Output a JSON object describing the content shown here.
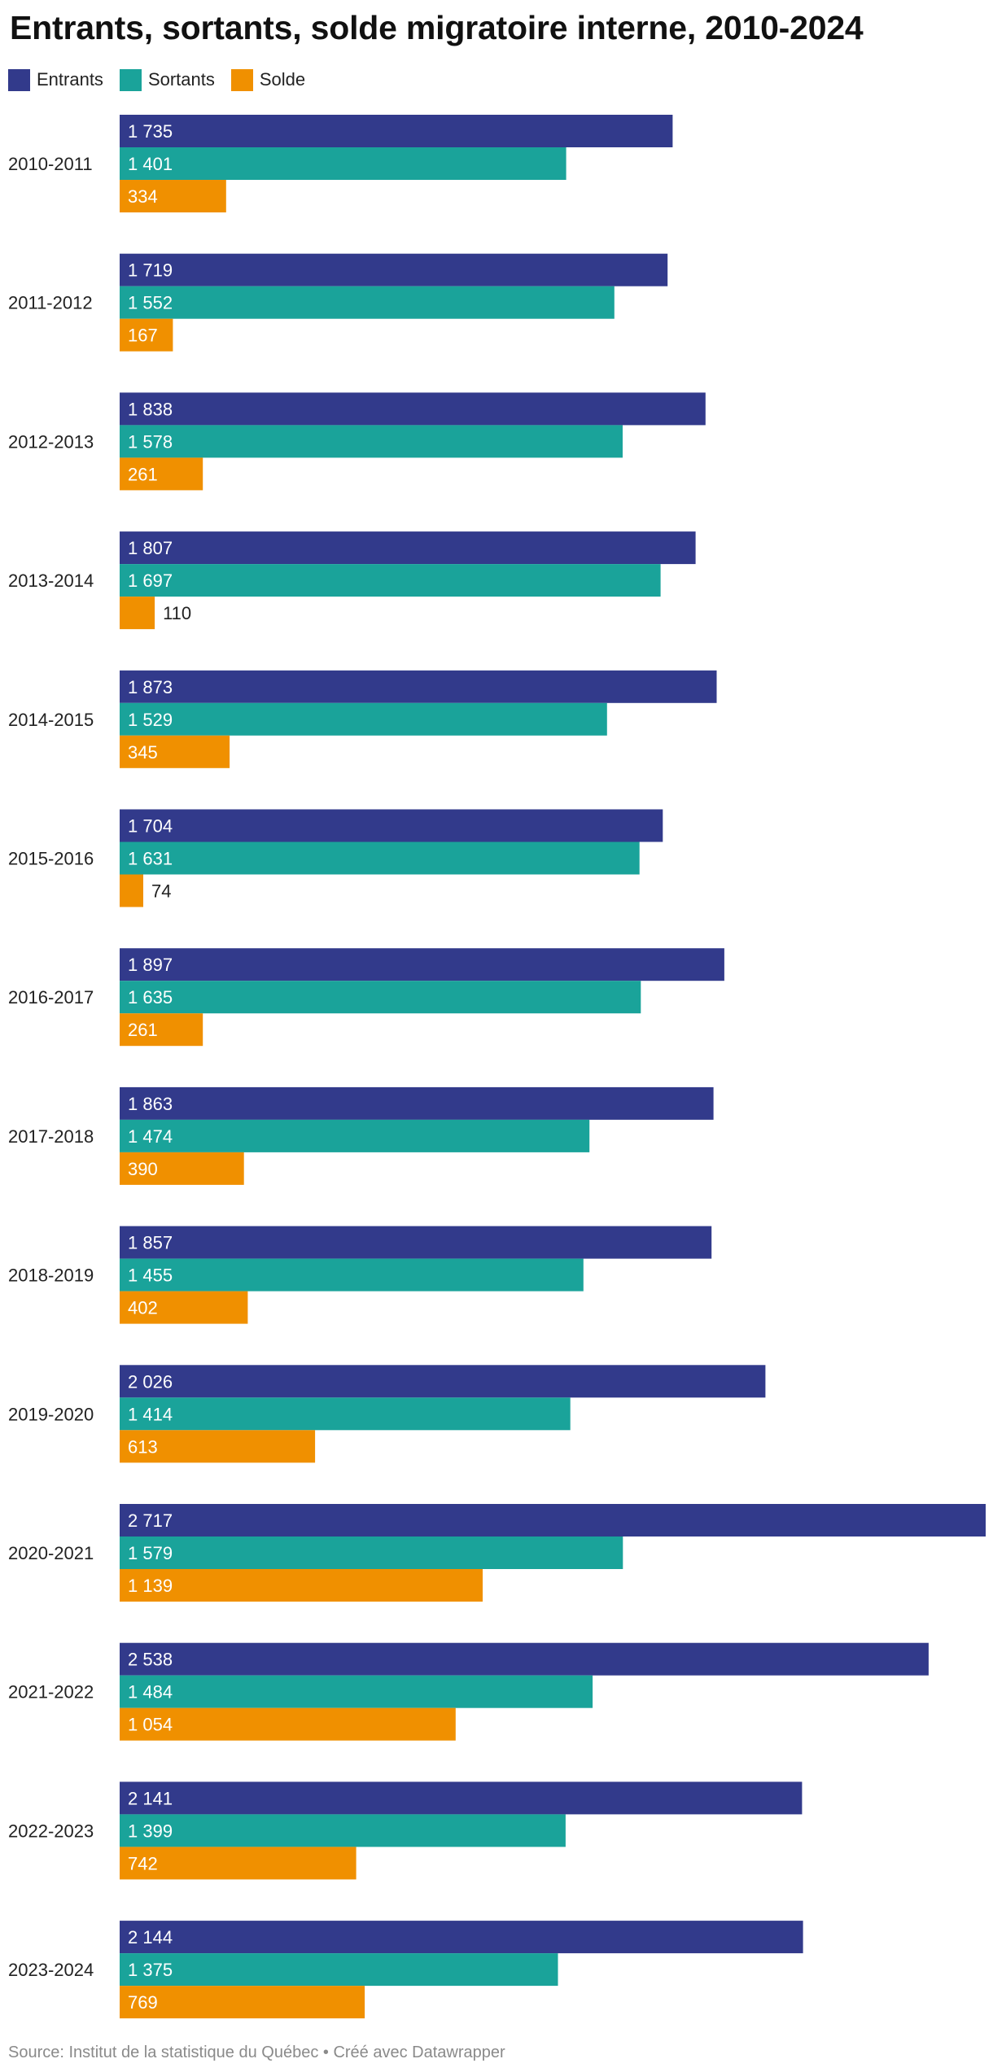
{
  "title": "Entrants, sortants, solde migratoire interne, 2010-2024",
  "legend": [
    {
      "label": "Entrants",
      "color": "#323a8b"
    },
    {
      "label": "Sortants",
      "color": "#1aa39a"
    },
    {
      "label": "Solde",
      "color": "#f09000"
    }
  ],
  "source": "Source: Institut de la statistique du Québec • Créé avec Datawrapper",
  "chart_data": {
    "type": "bar",
    "orientation": "horizontal",
    "categories": [
      "2010-2011",
      "2011-2012",
      "2012-2013",
      "2013-2014",
      "2014-2015",
      "2015-2016",
      "2016-2017",
      "2017-2018",
      "2018-2019",
      "2019-2020",
      "2020-2021",
      "2021-2022",
      "2022-2023",
      "2023-2024"
    ],
    "series": [
      {
        "name": "Entrants",
        "color": "#323a8b",
        "values": [
          1735,
          1719,
          1838,
          1807,
          1873,
          1704,
          1897,
          1863,
          1857,
          2026,
          2717,
          2538,
          2141,
          2144
        ],
        "labels": [
          "1 735",
          "1 719",
          "1 838",
          "1 807",
          "1 873",
          "1 704",
          "1 897",
          "1 863",
          "1 857",
          "2 026",
          "2 717",
          "2 538",
          "2 141",
          "2 144"
        ]
      },
      {
        "name": "Sortants",
        "color": "#1aa39a",
        "values": [
          1401,
          1552,
          1578,
          1697,
          1529,
          1631,
          1635,
          1474,
          1455,
          1414,
          1579,
          1484,
          1399,
          1375
        ],
        "labels": [
          "1 401",
          "1 552",
          "1 578",
          "1 697",
          "1 529",
          "1 631",
          "1 635",
          "1 474",
          "1 455",
          "1 414",
          "1 579",
          "1 484",
          "1 399",
          "1 375"
        ]
      },
      {
        "name": "Solde",
        "color": "#f09000",
        "values": [
          334,
          167,
          261,
          110,
          345,
          74,
          261,
          390,
          402,
          613,
          1139,
          1054,
          742,
          769
        ],
        "labels": [
          "334",
          "167",
          "261",
          "110",
          "345",
          "74",
          "261",
          "390",
          "402",
          "613",
          "1 139",
          "1 054",
          "742",
          "769"
        ]
      }
    ],
    "xlim": [
      0,
      2717
    ],
    "grid": false,
    "legend_position": "top-left"
  }
}
